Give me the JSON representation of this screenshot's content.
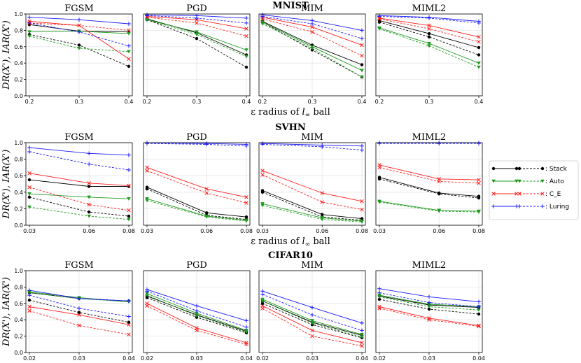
{
  "ylabel": "DR(X'), IAR(X')",
  "xlabel_prefix": "ε radius of ",
  "xlabel_norm": "l",
  "xlabel_sub": "∞",
  "xlabel_suffix": " ball",
  "legend": {
    "entries": [
      {
        "label": ": Stack",
        "color": "#000000",
        "marker": "circle"
      },
      {
        "label": ": Auto",
        "color": "#1f9a1f",
        "marker": "triangle"
      },
      {
        "label": ": C_E",
        "color": "#ff2020",
        "marker": "x"
      },
      {
        "label": ": Luring",
        "color": "#1a1aff",
        "marker": "plus"
      }
    ]
  },
  "colors": {
    "stack": "#000000",
    "auto": "#1f9a1f",
    "ce": "#ff2020",
    "luring": "#1a1aff"
  },
  "chart_data": [
    {
      "dataset": "MNIST",
      "x": [
        0.2,
        0.3,
        0.4
      ],
      "xticks": [
        "0.2",
        "0.3",
        "0.4"
      ],
      "ylim": [
        0,
        1
      ],
      "yticks": [
        "0.0",
        "0.2",
        "0.4",
        "0.6",
        "0.8",
        "1.0"
      ],
      "panels": [
        {
          "title": "FGSM",
          "series": {
            "stack": {
              "solid": [
                0.87,
                0.79,
                0.78
              ],
              "dashed": [
                0.75,
                0.62,
                0.36
              ]
            },
            "auto": {
              "solid": [
                0.78,
                0.79,
                0.76
              ],
              "dashed": [
                0.73,
                0.58,
                0.54
              ]
            },
            "ce": {
              "solid": [
                0.91,
                0.86,
                0.45
              ],
              "dashed": [
                0.89,
                0.86,
                0.8
              ]
            },
            "luring": {
              "solid": [
                0.96,
                0.93,
                0.88
              ],
              "dashed": [
                0.89,
                0.78,
                0.61
              ]
            }
          }
        },
        {
          "title": "PGD",
          "series": {
            "stack": {
              "solid": [
                0.94,
                0.77,
                0.5
              ],
              "dashed": [
                0.93,
                0.7,
                0.35
              ]
            },
            "auto": {
              "solid": [
                0.93,
                0.78,
                0.56
              ],
              "dashed": [
                0.93,
                0.75,
                0.48
              ]
            },
            "ce": {
              "solid": [
                0.97,
                0.93,
                0.82
              ],
              "dashed": [
                0.96,
                0.89,
                0.73
              ]
            },
            "luring": {
              "solid": [
                0.99,
                0.98,
                0.95
              ],
              "dashed": [
                0.98,
                0.95,
                0.89
              ]
            }
          }
        },
        {
          "title": "MIM",
          "series": {
            "stack": {
              "solid": [
                0.91,
                0.62,
                0.38
              ],
              "dashed": [
                0.9,
                0.56,
                0.23
              ]
            },
            "auto": {
              "solid": [
                0.9,
                0.6,
                0.31
              ],
              "dashed": [
                0.88,
                0.58,
                0.23
              ]
            },
            "ce": {
              "solid": [
                0.96,
                0.84,
                0.62
              ],
              "dashed": [
                0.94,
                0.78,
                0.49
              ]
            },
            "luring": {
              "solid": [
                0.99,
                0.92,
                0.8
              ],
              "dashed": [
                0.97,
                0.88,
                0.7
              ]
            }
          }
        },
        {
          "title": "MIML2",
          "series": {
            "stack": {
              "solid": [
                0.92,
                0.76,
                0.59
              ],
              "dashed": [
                0.9,
                0.72,
                0.5
              ]
            },
            "auto": {
              "solid": [
                0.83,
                0.64,
                0.4
              ],
              "dashed": [
                0.82,
                0.61,
                0.35
              ]
            },
            "ce": {
              "solid": [
                0.95,
                0.86,
                0.72
              ],
              "dashed": [
                0.94,
                0.82,
                0.66
              ]
            },
            "luring": {
              "solid": [
                0.98,
                0.96,
                0.91
              ],
              "dashed": [
                0.97,
                0.95,
                0.89
              ]
            }
          }
        }
      ]
    },
    {
      "dataset": "SVHN",
      "x": [
        0.03,
        0.06,
        0.08
      ],
      "xticks": [
        "0.03",
        "0.06",
        "0.08"
      ],
      "ylim": [
        0,
        1
      ],
      "yticks": [
        "0.0",
        "0.2",
        "0.4",
        "0.6",
        "0.8",
        "1.0"
      ],
      "panels": [
        {
          "title": "FGSM",
          "series": {
            "stack": {
              "solid": [
                0.55,
                0.47,
                0.47
              ],
              "dashed": [
                0.34,
                0.16,
                0.11
              ]
            },
            "auto": {
              "solid": [
                0.38,
                0.34,
                0.32
              ],
              "dashed": [
                0.22,
                0.11,
                0.07
              ]
            },
            "ce": {
              "solid": [
                0.63,
                0.51,
                0.48
              ],
              "dashed": [
                0.46,
                0.25,
                0.18
              ]
            },
            "luring": {
              "solid": [
                0.94,
                0.87,
                0.85
              ],
              "dashed": [
                0.89,
                0.74,
                0.67
              ]
            }
          }
        },
        {
          "title": "PGD",
          "series": {
            "stack": {
              "solid": [
                0.46,
                0.15,
                0.1
              ],
              "dashed": [
                0.44,
                0.12,
                0.07
              ]
            },
            "auto": {
              "solid": [
                0.32,
                0.11,
                0.06
              ],
              "dashed": [
                0.3,
                0.1,
                0.05
              ]
            },
            "ce": {
              "solid": [
                0.7,
                0.44,
                0.34
              ],
              "dashed": [
                0.66,
                0.39,
                0.27
              ]
            },
            "luring": {
              "solid": [
                1.0,
                0.99,
                0.98
              ],
              "dashed": [
                0.99,
                0.98,
                0.96
              ]
            }
          }
        },
        {
          "title": "MIM",
          "series": {
            "stack": {
              "solid": [
                0.42,
                0.13,
                0.08
              ],
              "dashed": [
                0.4,
                0.1,
                0.06
              ]
            },
            "auto": {
              "solid": [
                0.26,
                0.09,
                0.05
              ],
              "dashed": [
                0.24,
                0.07,
                0.04
              ]
            },
            "ce": {
              "solid": [
                0.66,
                0.39,
                0.29
              ],
              "dashed": [
                0.61,
                0.28,
                0.19
              ]
            },
            "luring": {
              "solid": [
                0.99,
                0.97,
                0.96
              ],
              "dashed": [
                0.98,
                0.95,
                0.91
              ]
            }
          }
        },
        {
          "title": "MIML2",
          "series": {
            "stack": {
              "solid": [
                0.58,
                0.39,
                0.35
              ],
              "dashed": [
                0.56,
                0.38,
                0.33
              ]
            },
            "auto": {
              "solid": [
                0.29,
                0.18,
                0.17
              ],
              "dashed": [
                0.28,
                0.17,
                0.16
              ]
            },
            "ce": {
              "solid": [
                0.73,
                0.56,
                0.55
              ],
              "dashed": [
                0.7,
                0.53,
                0.51
              ]
            },
            "luring": {
              "solid": [
                1.0,
                1.0,
                1.0
              ],
              "dashed": [
                0.99,
                0.99,
                0.99
              ]
            }
          }
        }
      ]
    },
    {
      "dataset": "CIFAR10",
      "x": [
        0.02,
        0.03,
        0.04
      ],
      "xticks": [
        "0.02",
        "0.03",
        "0.04"
      ],
      "ylim": [
        0,
        1
      ],
      "yticks": [
        "0.0",
        "0.2",
        "0.4",
        "0.6",
        "0.8",
        "1.0"
      ],
      "panels": [
        {
          "title": "FGSM",
          "series": {
            "stack": {
              "solid": [
                0.73,
                0.66,
                0.63
              ],
              "dashed": [
                0.64,
                0.49,
                0.37
              ]
            },
            "auto": {
              "solid": [
                0.74,
                0.67,
                0.62
              ],
              "dashed": [
                0.73,
                0.66,
                0.62
              ]
            },
            "ce": {
              "solid": [
                0.56,
                0.46,
                0.34
              ],
              "dashed": [
                0.51,
                0.33,
                0.22
              ]
            },
            "luring": {
              "solid": [
                0.76,
                0.66,
                0.63
              ],
              "dashed": [
                0.7,
                0.54,
                0.44
              ]
            }
          }
        },
        {
          "title": "PGD",
          "series": {
            "stack": {
              "solid": [
                0.69,
                0.46,
                0.26
              ],
              "dashed": [
                0.67,
                0.43,
                0.24
              ]
            },
            "auto": {
              "solid": [
                0.72,
                0.48,
                0.27
              ],
              "dashed": [
                0.7,
                0.45,
                0.25
              ]
            },
            "ce": {
              "solid": [
                0.6,
                0.3,
                0.12
              ],
              "dashed": [
                0.57,
                0.27,
                0.1
              ]
            },
            "luring": {
              "solid": [
                0.77,
                0.57,
                0.39
              ],
              "dashed": [
                0.75,
                0.51,
                0.31
              ]
            }
          }
        },
        {
          "title": "MIM",
          "series": {
            "stack": {
              "solid": [
                0.63,
                0.37,
                0.21
              ],
              "dashed": [
                0.6,
                0.34,
                0.18
              ]
            },
            "auto": {
              "solid": [
                0.65,
                0.39,
                0.22
              ],
              "dashed": [
                0.63,
                0.36,
                0.19
              ]
            },
            "ce": {
              "solid": [
                0.57,
                0.27,
                0.12
              ],
              "dashed": [
                0.54,
                0.2,
                0.08
              ]
            },
            "luring": {
              "solid": [
                0.75,
                0.55,
                0.36
              ],
              "dashed": [
                0.71,
                0.46,
                0.27
              ]
            }
          }
        },
        {
          "title": "MIML2",
          "series": {
            "stack": {
              "solid": [
                0.69,
                0.58,
                0.55
              ],
              "dashed": [
                0.65,
                0.53,
                0.47
              ]
            },
            "auto": {
              "solid": [
                0.7,
                0.59,
                0.56
              ],
              "dashed": [
                0.68,
                0.56,
                0.52
              ]
            },
            "ce": {
              "solid": [
                0.56,
                0.42,
                0.33
              ],
              "dashed": [
                0.54,
                0.4,
                0.32
              ]
            },
            "luring": {
              "solid": [
                0.78,
                0.68,
                0.62
              ],
              "dashed": [
                0.73,
                0.61,
                0.56
              ]
            }
          }
        }
      ]
    }
  ]
}
